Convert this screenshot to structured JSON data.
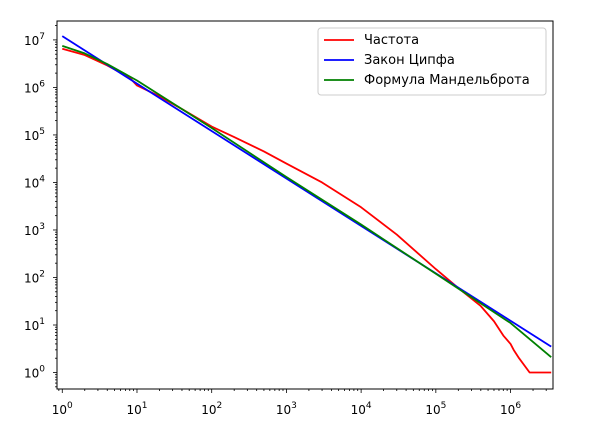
{
  "chart_data": {
    "type": "line",
    "title": "",
    "xlabel": "",
    "ylabel": "",
    "xscale": "log",
    "yscale": "log",
    "xlim": [
      0.85,
      3700000
    ],
    "ylim": [
      0.45,
      25000000
    ],
    "grid": false,
    "legend_position": "top-right",
    "x_ticks": [
      {
        "value": 1,
        "base": "10",
        "exp": "0"
      },
      {
        "value": 10,
        "base": "10",
        "exp": "1"
      },
      {
        "value": 100,
        "base": "10",
        "exp": "2"
      },
      {
        "value": 1000,
        "base": "10",
        "exp": "3"
      },
      {
        "value": 10000,
        "base": "10",
        "exp": "4"
      },
      {
        "value": 100000,
        "base": "10",
        "exp": "5"
      },
      {
        "value": 1000000,
        "base": "10",
        "exp": "6"
      }
    ],
    "y_ticks": [
      {
        "value": 1,
        "base": "10",
        "exp": "0"
      },
      {
        "value": 10,
        "base": "10",
        "exp": "1"
      },
      {
        "value": 100,
        "base": "10",
        "exp": "2"
      },
      {
        "value": 1000,
        "base": "10",
        "exp": "3"
      },
      {
        "value": 10000,
        "base": "10",
        "exp": "4"
      },
      {
        "value": 100000,
        "base": "10",
        "exp": "5"
      },
      {
        "value": 1000000,
        "base": "10",
        "exp": "6"
      },
      {
        "value": 10000000,
        "base": "10",
        "exp": "7"
      }
    ],
    "series": [
      {
        "name": "Частота",
        "color": "#ff0000",
        "x": [
          1,
          2,
          4,
          8,
          10,
          20,
          40,
          100,
          200,
          500,
          1000,
          3000,
          10000,
          30000,
          100000,
          200000,
          400000,
          600000,
          800000,
          1000000,
          1100000,
          1300000,
          1800000,
          3500000
        ],
        "y": [
          6500000,
          4800000,
          2900000,
          1600000,
          1100000,
          650000,
          350000,
          150000,
          90000,
          45000,
          25000,
          10000,
          3000,
          800,
          150,
          60,
          25,
          12,
          6,
          4,
          3,
          2,
          1,
          1
        ]
      },
      {
        "name": "Закон Ципфа",
        "color": "#0000ff",
        "x": [
          1,
          3500000
        ],
        "y": [
          12000000,
          3.5
        ]
      },
      {
        "name": "Формула Мандельброта",
        "color": "#008000",
        "x": [
          1,
          2,
          4,
          10,
          100,
          1000,
          10000,
          100000,
          1000000,
          3500000
        ],
        "y": [
          7500000,
          5200000,
          3100000,
          1400000,
          140000,
          13000,
          1300,
          120,
          11,
          2.1
        ]
      }
    ]
  }
}
